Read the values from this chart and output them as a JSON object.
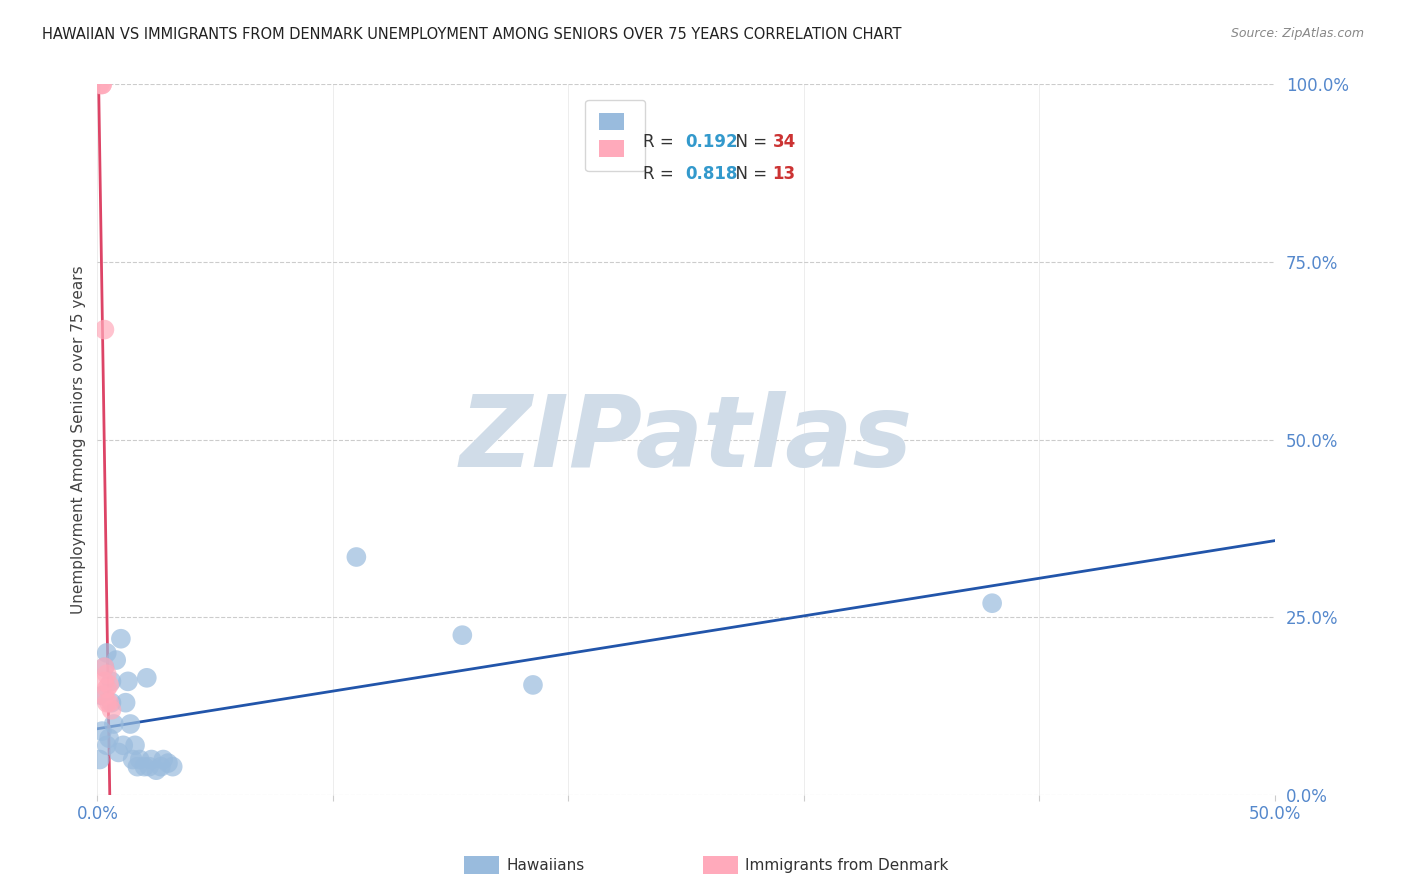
{
  "title": "HAWAIIAN VS IMMIGRANTS FROM DENMARK UNEMPLOYMENT AMONG SENIORS OVER 75 YEARS CORRELATION CHART",
  "source": "Source: ZipAtlas.com",
  "ylabel": "Unemployment Among Seniors over 75 years",
  "background_color": "#ffffff",
  "grid_color": "#cccccc",
  "xlim": [
    0.0,
    0.5
  ],
  "ylim": [
    0.0,
    1.0
  ],
  "ytick_labels": [
    "0.0%",
    "25.0%",
    "50.0%",
    "75.0%",
    "100.0%"
  ],
  "ytick_vals": [
    0.0,
    0.25,
    0.5,
    0.75,
    1.0
  ],
  "x_left_label": "0.0%",
  "x_right_label": "50.0%",
  "tick_color": "#5588cc",
  "hawaiians_R": 0.192,
  "hawaiians_N": 34,
  "denmark_R": 0.818,
  "denmark_N": 13,
  "hawaiians_color": "#99bbdd",
  "denmark_color": "#ffaabb",
  "hawaiians_line_color": "#2255aa",
  "denmark_line_color": "#dd4466",
  "legend_color_hawaii": "#99bbdd",
  "legend_color_denmark": "#ffaabb",
  "R_color": "#3399cc",
  "N_color": "#cc3333",
  "hawaiians_x": [
    0.001,
    0.002,
    0.002,
    0.003,
    0.004,
    0.004,
    0.005,
    0.006,
    0.006,
    0.007,
    0.008,
    0.009,
    0.01,
    0.011,
    0.012,
    0.013,
    0.014,
    0.015,
    0.016,
    0.017,
    0.018,
    0.02,
    0.021,
    0.022,
    0.023,
    0.025,
    0.027,
    0.028,
    0.03,
    0.032,
    0.11,
    0.155,
    0.185,
    0.38
  ],
  "hawaiians_y": [
    0.05,
    0.09,
    0.14,
    0.18,
    0.07,
    0.2,
    0.08,
    0.13,
    0.16,
    0.1,
    0.19,
    0.06,
    0.22,
    0.07,
    0.13,
    0.16,
    0.1,
    0.05,
    0.07,
    0.04,
    0.05,
    0.04,
    0.165,
    0.04,
    0.05,
    0.035,
    0.04,
    0.05,
    0.045,
    0.04,
    0.335,
    0.225,
    0.155,
    0.27
  ],
  "denmark_x": [
    0.001,
    0.002,
    0.002,
    0.003,
    0.003,
    0.003,
    0.003,
    0.004,
    0.004,
    0.004,
    0.005,
    0.005,
    0.006
  ],
  "denmark_y": [
    1.0,
    1.0,
    1.0,
    0.655,
    0.18,
    0.16,
    0.14,
    0.17,
    0.15,
    0.13,
    0.155,
    0.13,
    0.12
  ],
  "watermark": "ZIPatlas",
  "watermark_color": "#d0dce8",
  "watermark_fontsize": 72
}
